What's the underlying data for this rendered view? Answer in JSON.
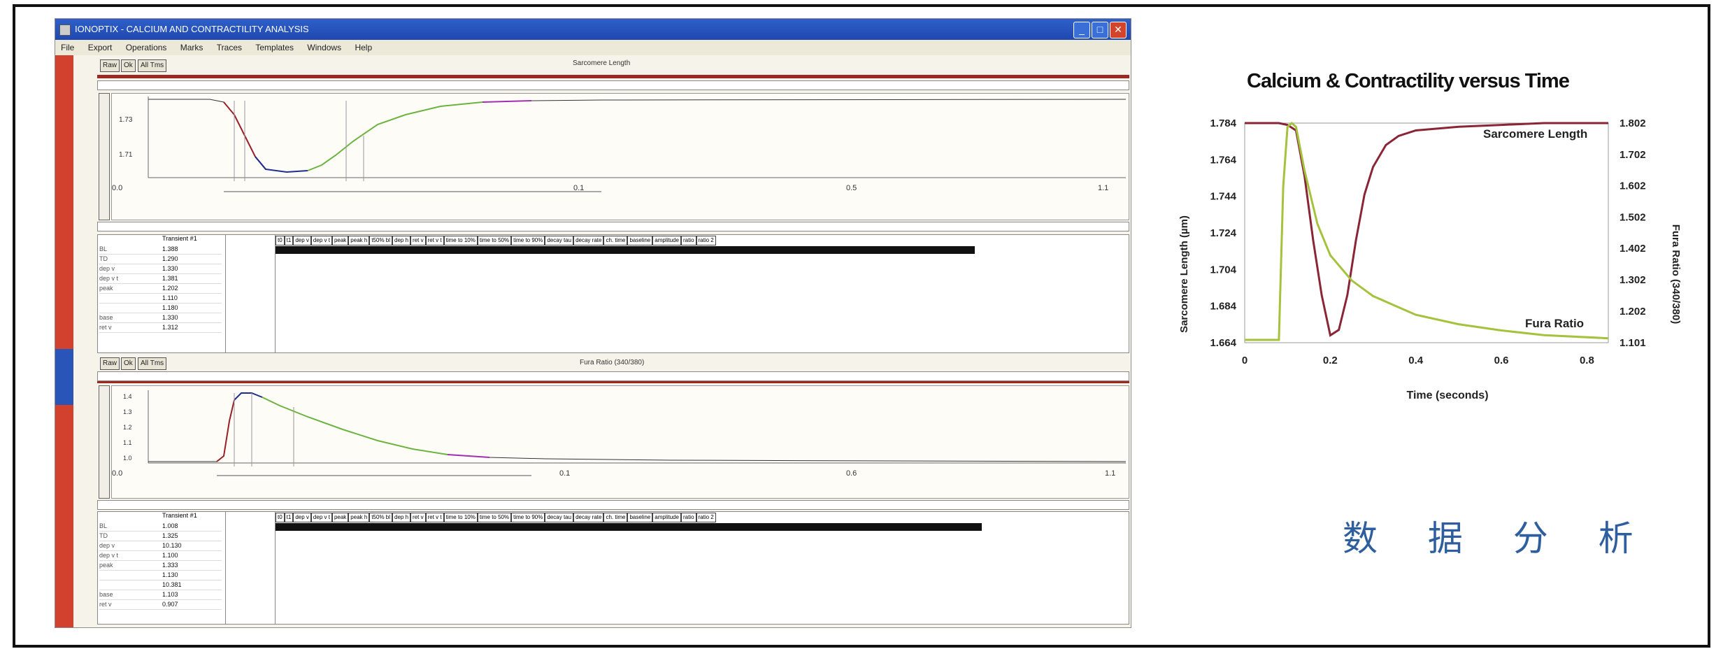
{
  "window": {
    "title": "IONOPTIX - CALCIUM AND CONTRACTILITY ANALYSIS",
    "menu": [
      "File",
      "Export",
      "Operations",
      "Marks",
      "Traces",
      "Templates",
      "Windows",
      "Help"
    ],
    "controls": {
      "minimize": "_",
      "maximize": "□",
      "close": "✕"
    }
  },
  "panel_top": {
    "buttons": [
      "Raw",
      "Ok",
      "All Tms"
    ],
    "title": "Sarcomere Length",
    "y_ticks": [
      "1.73",
      "1.71"
    ],
    "x_ticks": [
      "0.0",
      "0.1",
      "0.5",
      "1.1"
    ],
    "table": {
      "column_header": "Transient #1",
      "rows": [
        {
          "name": "BL",
          "value": "1.388"
        },
        {
          "name": "TD",
          "value": "1.290"
        },
        {
          "name": "dep v",
          "value": "1.330"
        },
        {
          "name": "dep v t",
          "value": "1.381"
        },
        {
          "name": "peak",
          "value": "1.202"
        },
        {
          "name": "",
          "value": "1.110"
        },
        {
          "name": "",
          "value": "1.180"
        },
        {
          "name": "base",
          "value": "1.330"
        },
        {
          "name": "ret v",
          "value": "1.312"
        }
      ],
      "headers": [
        "t0",
        "t1",
        "dep v",
        "dep v t",
        "peak",
        "peak h",
        "t50% bl",
        "dep h",
        "ret v",
        "ret v t",
        "time to 10%",
        "time to 50%",
        "time to 90%",
        "decay tau",
        "decay rate",
        "ch. time",
        "baseline",
        "amplitude",
        "ratio",
        "ratio 2"
      ]
    }
  },
  "panel_bottom": {
    "buttons": [
      "Raw",
      "Ok",
      "All Tms"
    ],
    "title": "Fura Ratio (340/380)",
    "y_ticks": [
      "1.4",
      "1.3",
      "1.2",
      "1.1",
      "1.0"
    ],
    "x_ticks": [
      "0.0",
      "0.1",
      "0.6",
      "1.1"
    ],
    "table": {
      "column_header": "Transient #1",
      "rows": [
        {
          "name": "BL",
          "value": "1.008"
        },
        {
          "name": "TD",
          "value": "1.325"
        },
        {
          "name": "dep v",
          "value": "10.130"
        },
        {
          "name": "dep v t",
          "value": "1.100"
        },
        {
          "name": "peak",
          "value": "1.333"
        },
        {
          "name": "",
          "value": "1.130"
        },
        {
          "name": "",
          "value": "10.381"
        },
        {
          "name": "base",
          "value": "1.103"
        },
        {
          "name": "ret v",
          "value": "0.907"
        }
      ],
      "headers": [
        "t0",
        "t1",
        "dep v",
        "dep v t",
        "peak",
        "peak h",
        "t50% bl",
        "dep h",
        "ret v",
        "ret v t",
        "time to 10%",
        "time to 50%",
        "time to 90%",
        "decay tau",
        "decay rate",
        "ch. time",
        "baseline",
        "amplitude",
        "ratio",
        "ratio 2"
      ]
    }
  },
  "chart_data": {
    "type": "line",
    "title": "Calcium & Contractility versus Time",
    "xlabel": "Time (seconds)",
    "ylabel": "Sarcomere Length (µm)",
    "ylabel_right": "Fura Ratio (340/380)",
    "xlim": [
      0,
      0.85
    ],
    "ylim": [
      1.664,
      1.784
    ],
    "ylim_right": [
      1.101,
      1.802
    ],
    "x_ticks": [
      "0",
      "0.2",
      "0.4",
      "0.6",
      "0.8"
    ],
    "y_ticks": [
      "1.664",
      "1.684",
      "1.704",
      "1.724",
      "1.744",
      "1.764",
      "1.784"
    ],
    "y_ticks_right": [
      "1.101",
      "1.202",
      "1.302",
      "1.402",
      "1.502",
      "1.602",
      "1.702",
      "1.802"
    ],
    "series": [
      {
        "name": "Sarcomere Length",
        "color": "#8a2535",
        "axis": "left",
        "x": [
          0,
          0.08,
          0.1,
          0.12,
          0.14,
          0.16,
          0.18,
          0.2,
          0.22,
          0.24,
          0.26,
          0.28,
          0.3,
          0.33,
          0.36,
          0.4,
          0.45,
          0.5,
          0.6,
          0.7,
          0.85
        ],
        "y": [
          1.784,
          1.784,
          1.783,
          1.78,
          1.755,
          1.72,
          1.69,
          1.668,
          1.671,
          1.69,
          1.72,
          1.745,
          1.76,
          1.772,
          1.777,
          1.78,
          1.781,
          1.782,
          1.783,
          1.784,
          1.784
        ]
      },
      {
        "name": "Fura Ratio",
        "color": "#a5c23d",
        "axis": "right",
        "x": [
          0,
          0.08,
          0.09,
          0.1,
          0.11,
          0.12,
          0.14,
          0.17,
          0.2,
          0.25,
          0.3,
          0.35,
          0.4,
          0.5,
          0.6,
          0.7,
          0.85
        ],
        "y": [
          1.11,
          1.11,
          1.6,
          1.79,
          1.802,
          1.79,
          1.65,
          1.48,
          1.38,
          1.3,
          1.25,
          1.22,
          1.19,
          1.16,
          1.14,
          1.125,
          1.115
        ]
      }
    ],
    "annotations": [
      "Sarcomere Length",
      "Fura Ratio"
    ]
  },
  "caption": "数 据 分 析"
}
